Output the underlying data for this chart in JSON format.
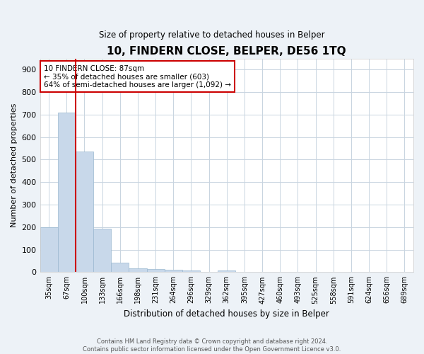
{
  "title": "10, FINDERN CLOSE, BELPER, DE56 1TQ",
  "subtitle": "Size of property relative to detached houses in Belper",
  "xlabel": "Distribution of detached houses by size in Belper",
  "ylabel": "Number of detached properties",
  "categories": [
    "35sqm",
    "67sqm",
    "100sqm",
    "133sqm",
    "166sqm",
    "198sqm",
    "231sqm",
    "264sqm",
    "296sqm",
    "329sqm",
    "362sqm",
    "395sqm",
    "427sqm",
    "460sqm",
    "493sqm",
    "525sqm",
    "558sqm",
    "591sqm",
    "624sqm",
    "656sqm",
    "689sqm"
  ],
  "values": [
    200,
    710,
    535,
    193,
    42,
    18,
    13,
    10,
    7,
    0,
    8,
    0,
    0,
    0,
    0,
    0,
    0,
    0,
    0,
    0,
    0
  ],
  "bar_color": "#c8d8ea",
  "bar_edge_color": "#9ab8d0",
  "property_line_x": 1.5,
  "annotation_text": "10 FINDERN CLOSE: 87sqm\n← 35% of detached houses are smaller (603)\n64% of semi-detached houses are larger (1,092) →",
  "annotation_box_color": "#ffffff",
  "annotation_box_edge_color": "#cc0000",
  "red_line_color": "#cc0000",
  "ylim": [
    0,
    950
  ],
  "yticks": [
    0,
    100,
    200,
    300,
    400,
    500,
    600,
    700,
    800,
    900
  ],
  "footer_line1": "Contains HM Land Registry data © Crown copyright and database right 2024.",
  "footer_line2": "Contains public sector information licensed under the Open Government Licence v3.0.",
  "bg_color": "#edf2f7",
  "plot_bg_color": "#ffffff",
  "grid_color": "#c8d4e0"
}
